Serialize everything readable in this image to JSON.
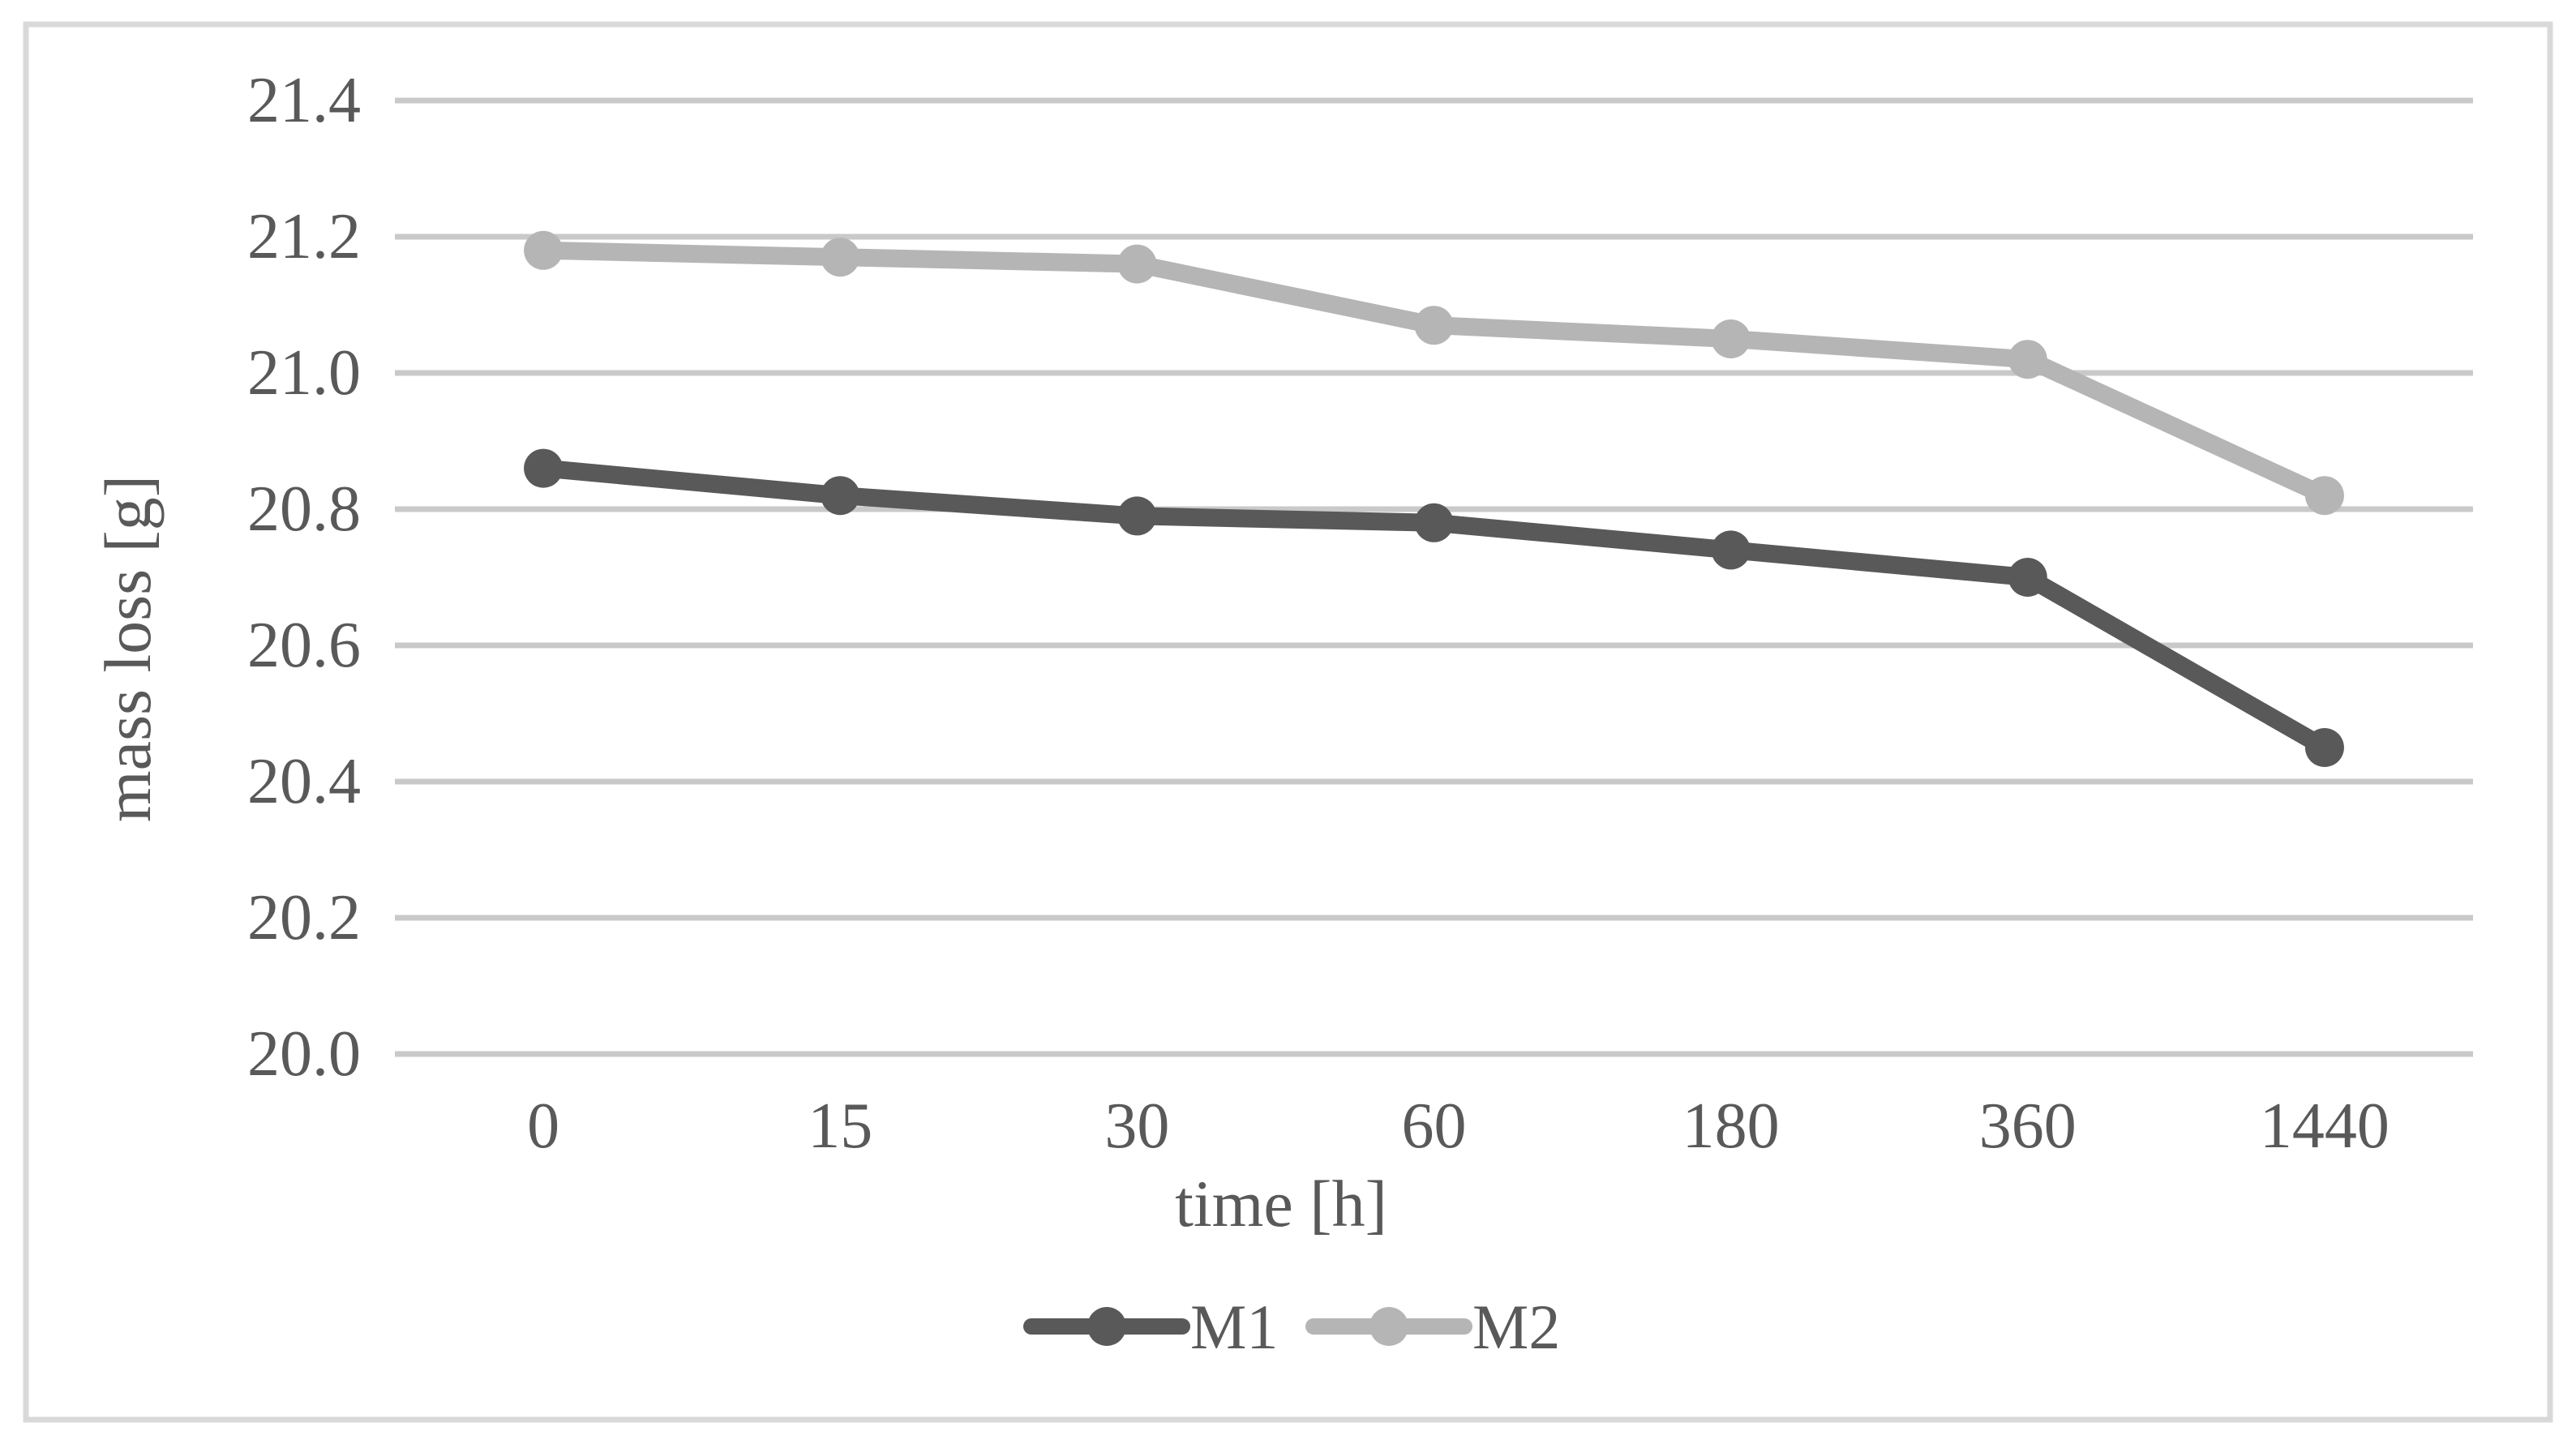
{
  "figure": {
    "background": "#ffffff",
    "border_color": "#d9d9d9"
  },
  "chart_data": {
    "type": "line",
    "title": "",
    "xlabel": "time [h]",
    "ylabel": "mass loss [g]",
    "categories": [
      "0",
      "15",
      "30",
      "60",
      "180",
      "360",
      "1440"
    ],
    "series": [
      {
        "name": "M1",
        "color": "#595959",
        "values": [
          20.86,
          20.82,
          20.79,
          20.78,
          20.74,
          20.7,
          20.45
        ]
      },
      {
        "name": "M2",
        "color": "#b5b5b5",
        "values": [
          21.18,
          21.17,
          21.16,
          21.07,
          21.05,
          21.02,
          20.82
        ]
      }
    ],
    "y_ticks": [
      "21.4",
      "21.2",
      "21.0",
      "20.8",
      "20.6",
      "20.4",
      "20.2",
      "20.0"
    ],
    "ylim": [
      20.0,
      21.4
    ],
    "y_tick_step": 0.2,
    "grid": true,
    "gridline_color": "#c9c9c9",
    "text_color": "#595959",
    "legend_position": "bottom",
    "marker": "circle"
  }
}
